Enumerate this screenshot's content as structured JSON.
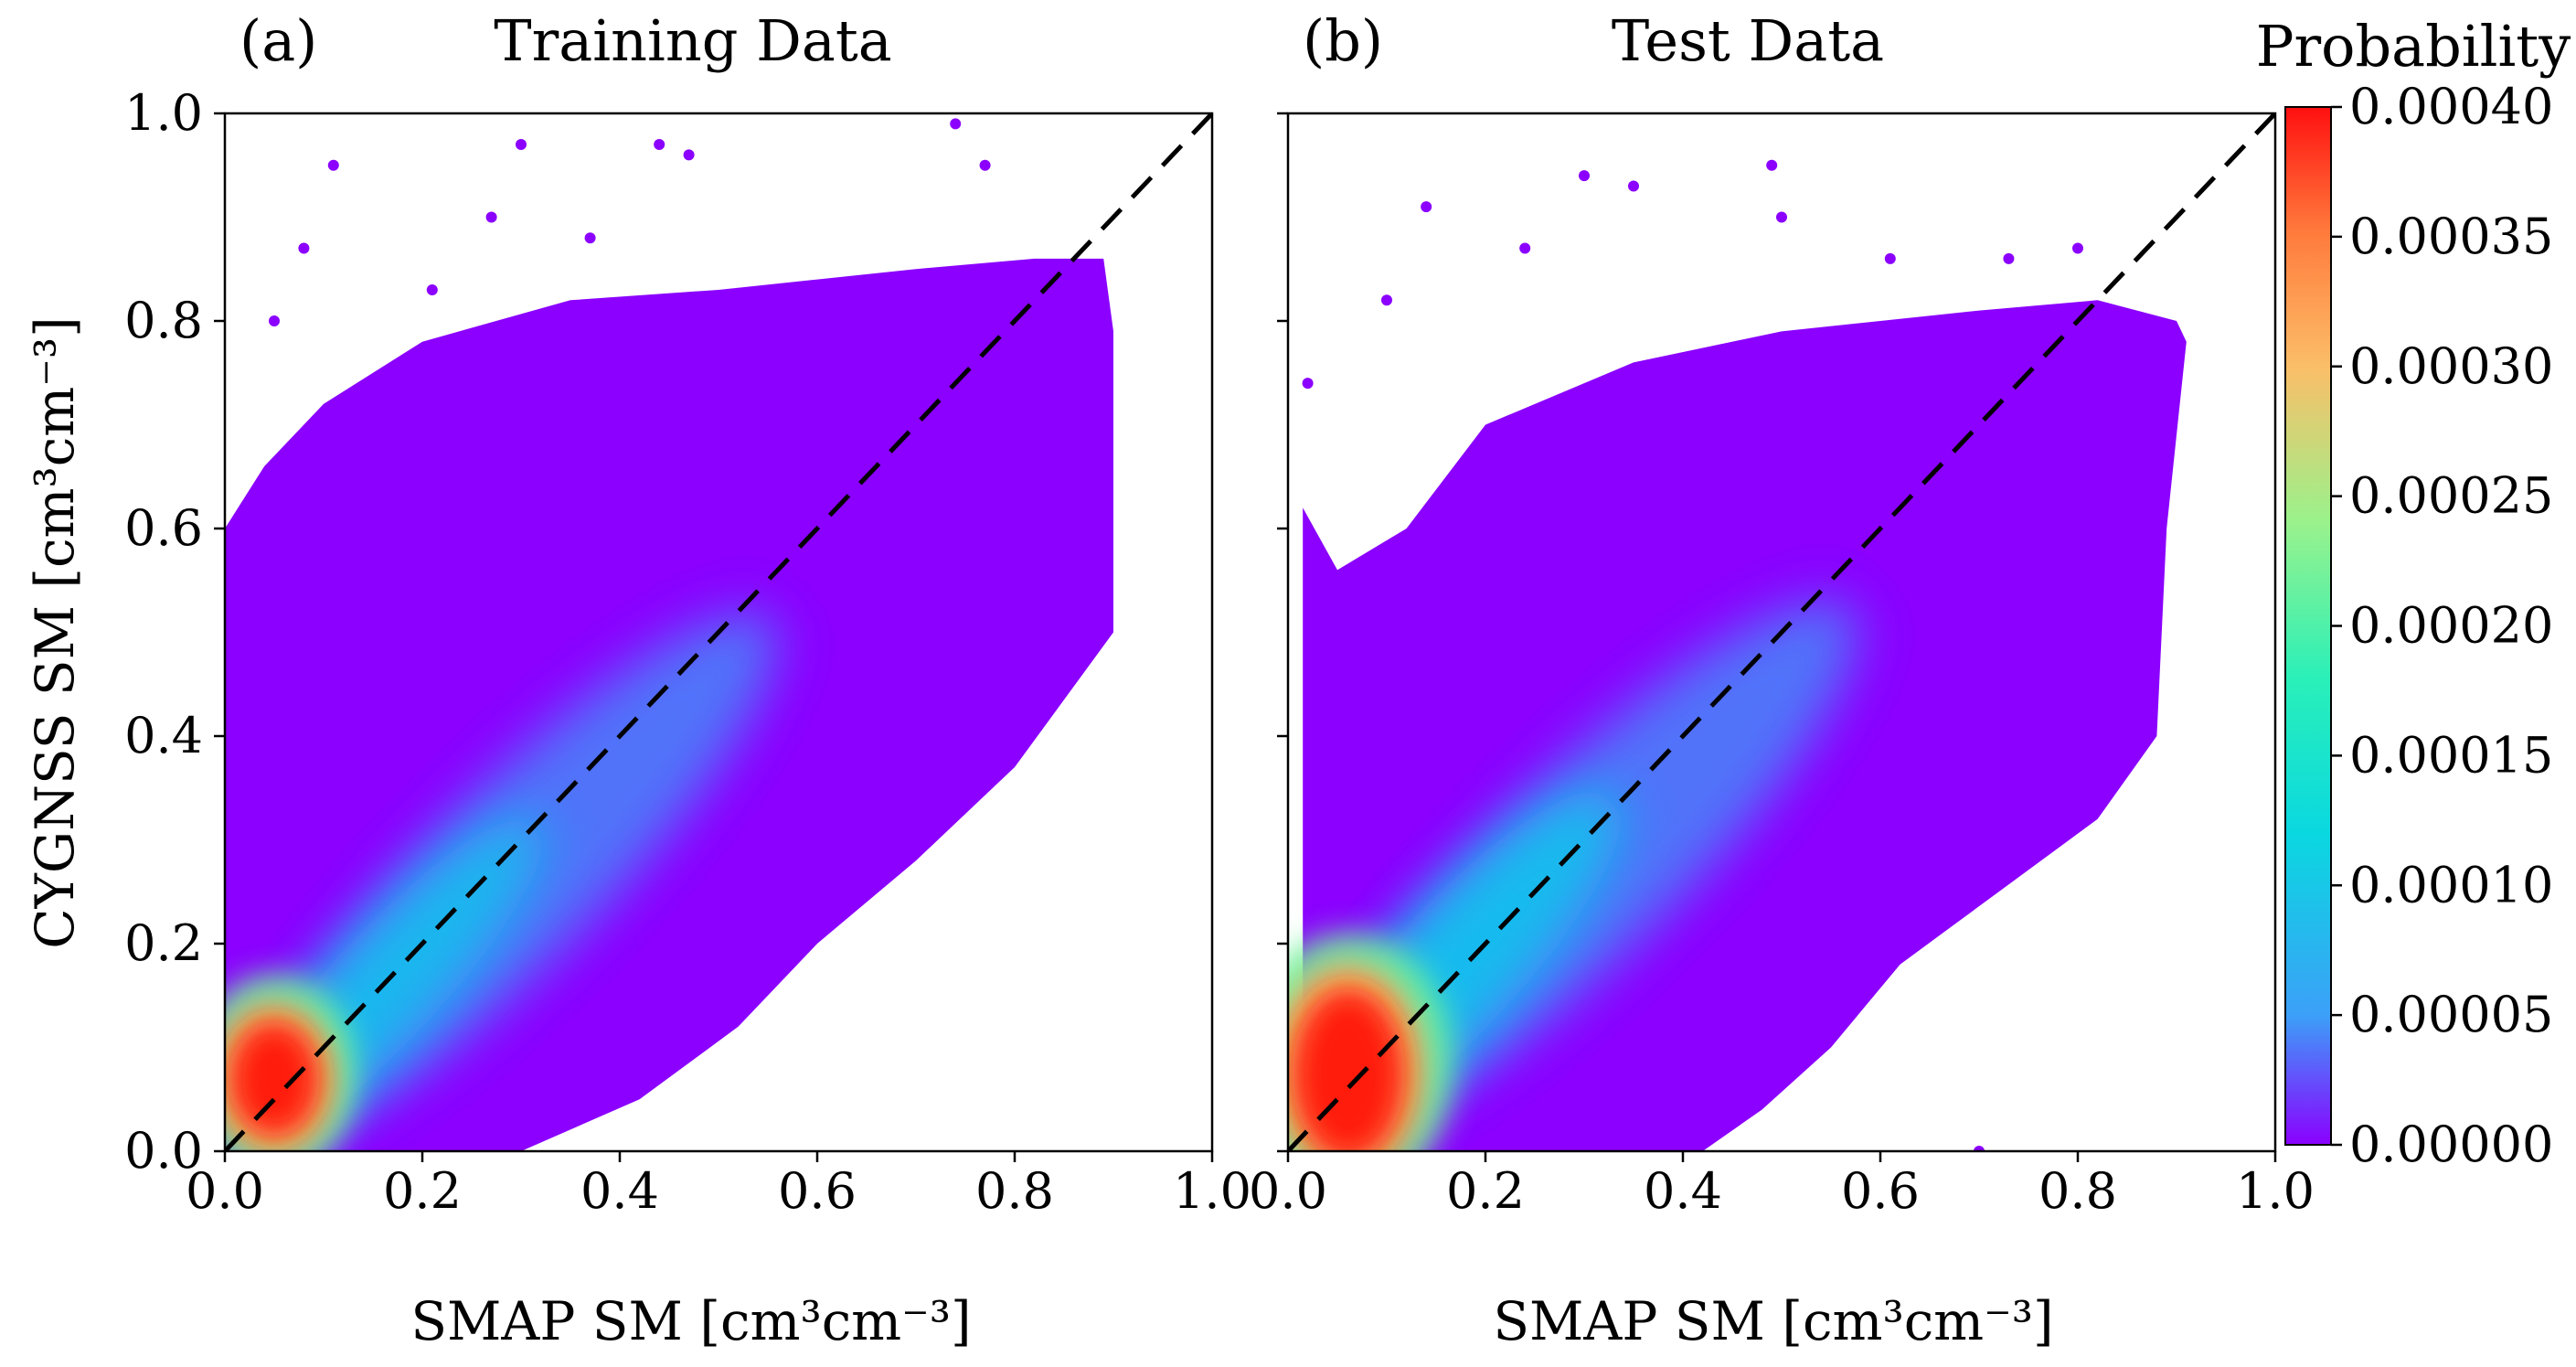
{
  "chart_data": [
    {
      "type": "scatter",
      "panel_label": "(a)",
      "title": "Training Data",
      "xlabel": "SMAP SM [cm³cm⁻³]",
      "ylabel": "CYGNSS SM [cm³cm⁻³]",
      "xlim": [
        0.0,
        1.0
      ],
      "ylim": [
        0.0,
        1.0
      ],
      "xticks": [
        "0.0",
        "0.2",
        "0.4",
        "0.6",
        "0.8",
        "1.0"
      ],
      "yticks": [
        "0.0",
        "0.2",
        "0.4",
        "0.6",
        "0.8",
        "1.0"
      ],
      "reference_line": {
        "label": "1:1",
        "x": [
          0.0,
          1.0
        ],
        "y": [
          0.0,
          1.0
        ]
      },
      "density_peak": {
        "x": 0.05,
        "y": 0.07,
        "probability": 0.0004
      },
      "cloud_envelope": [
        [
          0.0,
          0.0
        ],
        [
          0.0,
          0.6
        ],
        [
          0.04,
          0.66
        ],
        [
          0.1,
          0.72
        ],
        [
          0.2,
          0.78
        ],
        [
          0.35,
          0.82
        ],
        [
          0.5,
          0.83
        ],
        [
          0.6,
          0.84
        ],
        [
          0.7,
          0.85
        ],
        [
          0.82,
          0.86
        ],
        [
          0.89,
          0.86
        ],
        [
          0.9,
          0.79
        ],
        [
          0.9,
          0.5
        ],
        [
          0.8,
          0.37
        ],
        [
          0.7,
          0.28
        ],
        [
          0.6,
          0.2
        ],
        [
          0.52,
          0.12
        ],
        [
          0.42,
          0.05
        ],
        [
          0.3,
          0.0
        ]
      ],
      "outliers": [
        [
          0.11,
          0.95
        ],
        [
          0.3,
          0.97
        ],
        [
          0.44,
          0.97
        ],
        [
          0.47,
          0.96
        ],
        [
          0.74,
          0.99
        ],
        [
          0.77,
          0.95
        ],
        [
          0.27,
          0.9
        ],
        [
          0.37,
          0.88
        ],
        [
          0.08,
          0.87
        ],
        [
          0.05,
          0.8
        ],
        [
          0.21,
          0.83
        ],
        [
          0.57,
          0.8
        ]
      ]
    },
    {
      "type": "scatter",
      "panel_label": "(b)",
      "title": "Test Data",
      "xlabel": "SMAP SM [cm³cm⁻³]",
      "ylabel": "",
      "xlim": [
        0.0,
        1.0
      ],
      "ylim": [
        0.0,
        1.0
      ],
      "xticks": [
        "0.0",
        "0.2",
        "0.4",
        "0.6",
        "0.8",
        "1.0"
      ],
      "yticks": [],
      "reference_line": {
        "label": "1:1",
        "x": [
          0.0,
          1.0
        ],
        "y": [
          0.0,
          1.0
        ]
      },
      "density_peak": {
        "x": 0.06,
        "y": 0.08,
        "probability": 0.0004
      },
      "cloud_envelope": [
        [
          0.015,
          0.0
        ],
        [
          0.015,
          0.62
        ],
        [
          0.05,
          0.56
        ],
        [
          0.12,
          0.6
        ],
        [
          0.2,
          0.7
        ],
        [
          0.35,
          0.76
        ],
        [
          0.5,
          0.79
        ],
        [
          0.6,
          0.8
        ],
        [
          0.7,
          0.81
        ],
        [
          0.82,
          0.82
        ],
        [
          0.9,
          0.8
        ],
        [
          0.91,
          0.78
        ],
        [
          0.89,
          0.6
        ],
        [
          0.88,
          0.4
        ],
        [
          0.82,
          0.32
        ],
        [
          0.72,
          0.25
        ],
        [
          0.62,
          0.18
        ],
        [
          0.55,
          0.1
        ],
        [
          0.48,
          0.04
        ],
        [
          0.42,
          0.0
        ]
      ],
      "outliers": [
        [
          0.3,
          0.94
        ],
        [
          0.35,
          0.93
        ],
        [
          0.49,
          0.95
        ],
        [
          0.5,
          0.9
        ],
        [
          0.24,
          0.87
        ],
        [
          0.14,
          0.91
        ],
        [
          0.02,
          0.74
        ],
        [
          0.1,
          0.82
        ],
        [
          0.61,
          0.86
        ],
        [
          0.73,
          0.86
        ],
        [
          0.8,
          0.87
        ],
        [
          0.7,
          0.0
        ]
      ]
    }
  ],
  "colorbar": {
    "title": "Probability",
    "range": [
      0.0,
      0.0004
    ],
    "ticks": [
      "0.00040",
      "0.00035",
      "0.00030",
      "0.00025",
      "0.00020",
      "0.00015",
      "0.00010",
      "0.00005",
      "0.00000"
    ],
    "colors": [
      "#8b00ff",
      "#3ca0f8",
      "#0ad8e0",
      "#2af0b8",
      "#9af28c",
      "#fbbe68",
      "#ff7a3c",
      "#ff1010"
    ]
  }
}
